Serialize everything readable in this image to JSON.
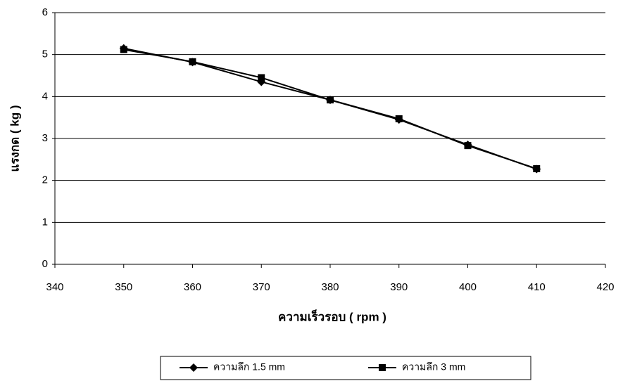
{
  "chart_data": {
    "type": "line",
    "x_label": "ความเร็วรอบ ( rpm )",
    "y_label": "แรงกด ( kg )",
    "x": [
      350,
      360,
      370,
      380,
      390,
      400,
      410
    ],
    "series": [
      {
        "name": "ความลึก 1.5 mm",
        "color": "#000000",
        "marker": "diamond",
        "values": [
          5.15,
          4.82,
          4.35,
          3.92,
          3.45,
          2.85,
          2.27
        ]
      },
      {
        "name": "ความลึก 3 mm",
        "color": "#000000",
        "marker": "square",
        "values": [
          5.12,
          4.83,
          4.45,
          3.92,
          3.47,
          2.83,
          2.28
        ]
      }
    ],
    "xlim": [
      340,
      420
    ],
    "xticks": [
      340,
      350,
      360,
      370,
      380,
      390,
      400,
      410,
      420
    ],
    "ylim": [
      0,
      6
    ],
    "yticks": [
      0,
      1,
      2,
      3,
      4,
      5,
      6
    ],
    "grid": true,
    "legend": "bottom"
  }
}
